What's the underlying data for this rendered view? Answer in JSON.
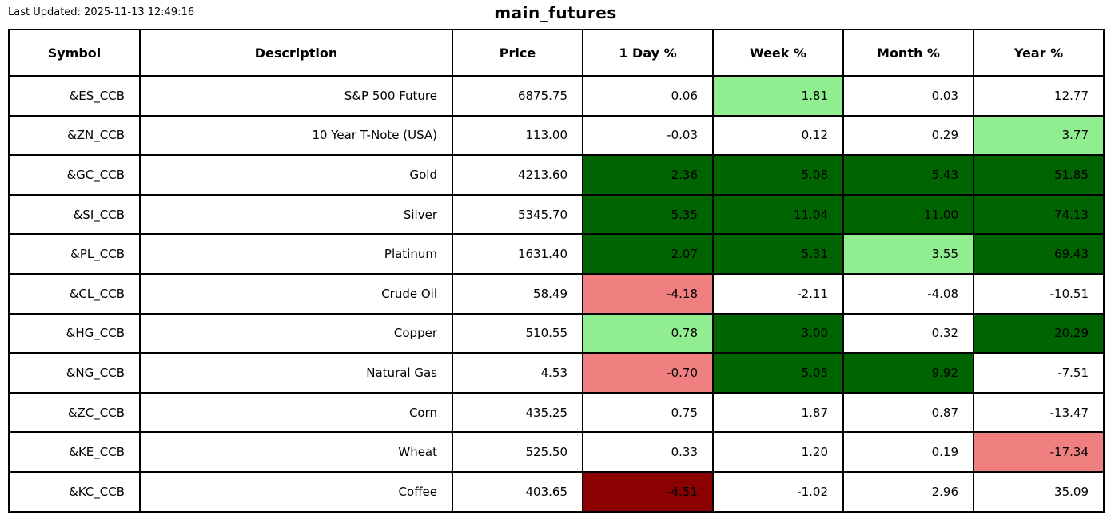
{
  "page": {
    "last_updated": "Last Updated: 2025-11-13 12:49:16",
    "title": "main_futures"
  },
  "palette": {
    "strong_gain": "#006400",
    "mild_gain": "#90EE90",
    "mild_loss": "#F08080",
    "strong_loss": "#8B0000",
    "neutral": "#FFFFFF",
    "border": "#000000",
    "text": "#000000"
  },
  "chart_data": {
    "type": "table",
    "title": "main_futures",
    "columns": [
      "Symbol",
      "Description",
      "Price",
      "1 Day %",
      "Week %",
      "Month %",
      "Year %"
    ],
    "rows": [
      {
        "symbol": "&ES_CCB",
        "description": "S&P 500 Future",
        "price": "6875.75",
        "day": "0.06",
        "week": "1.81",
        "month": "0.03",
        "year": "12.77",
        "cell_colors": {
          "day": "neutral",
          "week": "mild_gain",
          "month": "neutral",
          "year": "neutral"
        }
      },
      {
        "symbol": "&ZN_CCB",
        "description": "10 Year T-Note (USA)",
        "price": "113.00",
        "day": "-0.03",
        "week": "0.12",
        "month": "0.29",
        "year": "3.77",
        "cell_colors": {
          "day": "neutral",
          "week": "neutral",
          "month": "neutral",
          "year": "mild_gain"
        }
      },
      {
        "symbol": "&GC_CCB",
        "description": "Gold",
        "price": "4213.60",
        "day": "2.36",
        "week": "5.08",
        "month": "5.43",
        "year": "51.85",
        "cell_colors": {
          "day": "strong_gain",
          "week": "strong_gain",
          "month": "strong_gain",
          "year": "strong_gain"
        }
      },
      {
        "symbol": "&SI_CCB",
        "description": "Silver",
        "price": "5345.70",
        "day": "5.35",
        "week": "11.04",
        "month": "11.00",
        "year": "74.13",
        "cell_colors": {
          "day": "strong_gain",
          "week": "strong_gain",
          "month": "strong_gain",
          "year": "strong_gain"
        }
      },
      {
        "symbol": "&PL_CCB",
        "description": "Platinum",
        "price": "1631.40",
        "day": "2.07",
        "week": "5.31",
        "month": "3.55",
        "year": "69.43",
        "cell_colors": {
          "day": "strong_gain",
          "week": "strong_gain",
          "month": "mild_gain",
          "year": "strong_gain"
        }
      },
      {
        "symbol": "&CL_CCB",
        "description": "Crude Oil",
        "price": "58.49",
        "day": "-4.18",
        "week": "-2.11",
        "month": "-4.08",
        "year": "-10.51",
        "cell_colors": {
          "day": "mild_loss",
          "week": "neutral",
          "month": "neutral",
          "year": "neutral"
        }
      },
      {
        "symbol": "&HG_CCB",
        "description": "Copper",
        "price": "510.55",
        "day": "0.78",
        "week": "3.00",
        "month": "0.32",
        "year": "20.29",
        "cell_colors": {
          "day": "mild_gain",
          "week": "strong_gain",
          "month": "neutral",
          "year": "strong_gain"
        }
      },
      {
        "symbol": "&NG_CCB",
        "description": "Natural Gas",
        "price": "4.53",
        "day": "-0.70",
        "week": "5.05",
        "month": "9.92",
        "year": "-7.51",
        "cell_colors": {
          "day": "mild_loss",
          "week": "strong_gain",
          "month": "strong_gain",
          "year": "neutral"
        }
      },
      {
        "symbol": "&ZC_CCB",
        "description": "Corn",
        "price": "435.25",
        "day": "0.75",
        "week": "1.87",
        "month": "0.87",
        "year": "-13.47",
        "cell_colors": {
          "day": "neutral",
          "week": "neutral",
          "month": "neutral",
          "year": "neutral"
        }
      },
      {
        "symbol": "&KE_CCB",
        "description": "Wheat",
        "price": "525.50",
        "day": "0.33",
        "week": "1.20",
        "month": "0.19",
        "year": "-17.34",
        "cell_colors": {
          "day": "neutral",
          "week": "neutral",
          "month": "neutral",
          "year": "mild_loss"
        }
      },
      {
        "symbol": "&KC_CCB",
        "description": "Coffee",
        "price": "403.65",
        "day": "-4.51",
        "week": "-1.02",
        "month": "2.96",
        "year": "35.09",
        "cell_colors": {
          "day": "strong_loss",
          "week": "neutral",
          "month": "neutral",
          "year": "neutral"
        }
      }
    ]
  }
}
